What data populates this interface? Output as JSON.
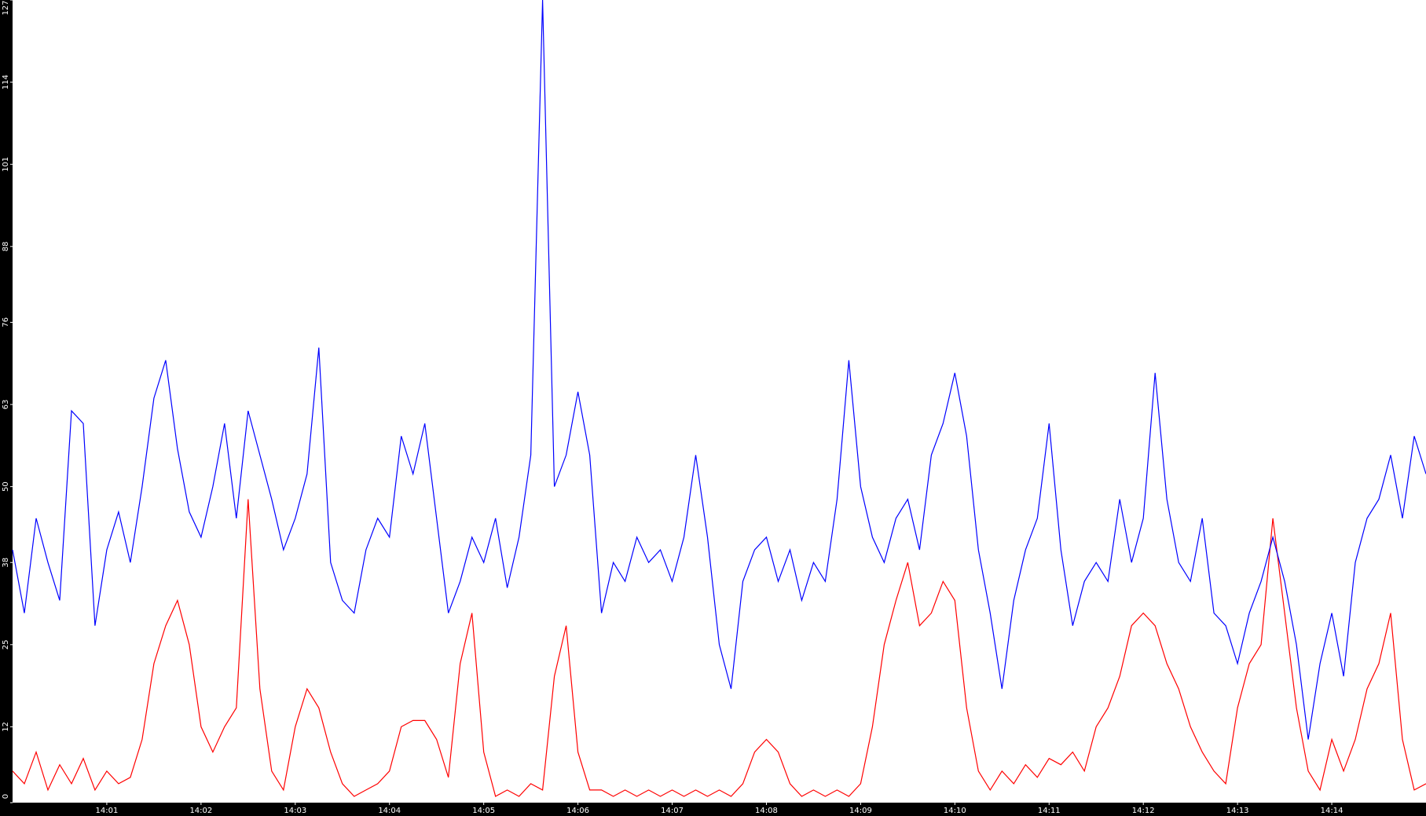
{
  "chart_data": {
    "type": "line",
    "xlim": [
      "14:00",
      "14:15"
    ],
    "xticks": [
      "14:01",
      "14:02",
      "14:03",
      "14:04",
      "14:05",
      "14:06",
      "14:07",
      "14:08",
      "14:09",
      "14:10",
      "14:11",
      "14:12",
      "14:13",
      "14:14"
    ],
    "ylim": [
      0,
      127
    ],
    "yticks": [
      0,
      12,
      25,
      38,
      50,
      63,
      76,
      88,
      101,
      114,
      127
    ],
    "grid": false,
    "series": [
      {
        "color": "#0000ff",
        "values": [
          40,
          30,
          45,
          38,
          32,
          62,
          60,
          28,
          40,
          46,
          38,
          50,
          64,
          70,
          56,
          46,
          42,
          50,
          60,
          45,
          62,
          55,
          48,
          40,
          45,
          52,
          72,
          38,
          32,
          30,
          40,
          45,
          42,
          58,
          52,
          60,
          45,
          30,
          35,
          42,
          38,
          45,
          34,
          42,
          55,
          127,
          50,
          55,
          65,
          55,
          30,
          38,
          35,
          42,
          38,
          40,
          35,
          42,
          55,
          42,
          25,
          18,
          35,
          40,
          42,
          35,
          40,
          32,
          38,
          35,
          48,
          70,
          50,
          42,
          38,
          45,
          48,
          40,
          55,
          60,
          68,
          58,
          40,
          30,
          18,
          32,
          40,
          45,
          60,
          40,
          28,
          35,
          38,
          35,
          48,
          38,
          45,
          68,
          48,
          38,
          35,
          45,
          30,
          28,
          22,
          30,
          35,
          42,
          35,
          25,
          10,
          22,
          30,
          20,
          38,
          45,
          48,
          55,
          45,
          58,
          52
        ]
      },
      {
        "color": "#ff0000",
        "values": [
          5,
          3,
          8,
          2,
          6,
          3,
          7,
          2,
          5,
          3,
          4,
          10,
          22,
          28,
          32,
          25,
          12,
          8,
          12,
          15,
          48,
          18,
          5,
          2,
          12,
          18,
          15,
          8,
          3,
          1,
          2,
          3,
          5,
          12,
          13,
          13,
          10,
          4,
          22,
          30,
          8,
          1,
          2,
          1,
          3,
          2,
          20,
          28,
          8,
          2,
          2,
          1,
          2,
          1,
          2,
          1,
          2,
          1,
          2,
          1,
          2,
          1,
          3,
          8,
          10,
          8,
          3,
          1,
          2,
          1,
          2,
          1,
          3,
          12,
          25,
          32,
          38,
          28,
          30,
          35,
          32,
          15,
          5,
          2,
          5,
          3,
          6,
          4,
          7,
          6,
          8,
          5,
          12,
          15,
          20,
          28,
          30,
          28,
          22,
          18,
          12,
          8,
          5,
          3,
          15,
          22,
          25,
          45,
          30,
          15,
          5,
          2,
          10,
          5,
          10,
          18,
          22,
          30,
          10,
          2,
          3
        ]
      }
    ]
  }
}
